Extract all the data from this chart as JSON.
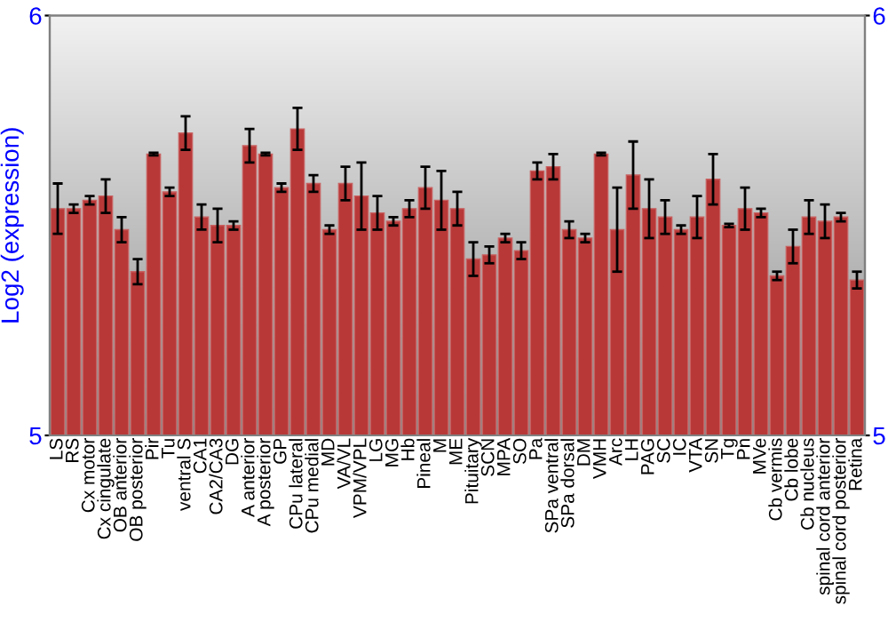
{
  "chart_data": {
    "type": "bar",
    "ylabel": "Log2 (expression)",
    "categories": [
      "LS",
      "RS",
      "Cx motor",
      "Cx cingulate",
      "OB anterior",
      "OB posterior",
      "Pir",
      "Tu",
      "ventral S",
      "CA1",
      "CA2/CA3",
      "DG",
      "A anterior",
      "A posterior",
      "GP",
      "CPu lateral",
      "CPu medial",
      "MD",
      "VA/VL",
      "VPM/VPL",
      "LG",
      "MG",
      "Hb",
      "Pineal",
      "M",
      "ME",
      "Pituitary",
      "SCN",
      "MPA",
      "SO",
      "Pa",
      "SPa ventral",
      "SPa dorsal",
      "DM",
      "VMH",
      "Arc",
      "LH",
      "PAG",
      "SC",
      "IC",
      "VTA",
      "SN",
      "Tg",
      "Pn",
      "MVe",
      "Cb vermis",
      "Cb lobe",
      "Cb nucleus",
      "spinal cord anterior",
      "spinal cord posterior",
      "Retina"
    ],
    "values": [
      5.54,
      5.54,
      5.56,
      5.57,
      5.49,
      5.39,
      5.67,
      5.58,
      5.72,
      5.52,
      5.5,
      5.5,
      5.69,
      5.67,
      5.59,
      5.73,
      5.6,
      5.49,
      5.6,
      5.57,
      5.53,
      5.51,
      5.54,
      5.59,
      5.56,
      5.54,
      5.42,
      5.43,
      5.47,
      5.44,
      5.63,
      5.64,
      5.49,
      5.47,
      5.67,
      5.49,
      5.62,
      5.54,
      5.52,
      5.49,
      5.52,
      5.61,
      5.5,
      5.54,
      5.53,
      5.38,
      5.45,
      5.52,
      5.51,
      5.52,
      5.37
    ],
    "errors": [
      0.06,
      0.01,
      0.01,
      0.04,
      0.03,
      0.03,
      0.003,
      0.01,
      0.04,
      0.03,
      0.04,
      0.01,
      0.04,
      0.003,
      0.01,
      0.05,
      0.02,
      0.01,
      0.04,
      0.08,
      0.04,
      0.01,
      0.02,
      0.05,
      0.07,
      0.04,
      0.04,
      0.02,
      0.01,
      0.02,
      0.02,
      0.03,
      0.02,
      0.01,
      0.003,
      0.1,
      0.08,
      0.07,
      0.04,
      0.01,
      0.05,
      0.06,
      0.004,
      0.05,
      0.01,
      0.01,
      0.04,
      0.04,
      0.04,
      0.01,
      0.02
    ],
    "color": "#b83838",
    "ylim": [
      5,
      6
    ],
    "yticks": [
      5,
      6
    ],
    "y2lim": [
      5,
      6
    ],
    "y2ticks": [
      5,
      6
    ],
    "grid": false,
    "legend": false
  }
}
